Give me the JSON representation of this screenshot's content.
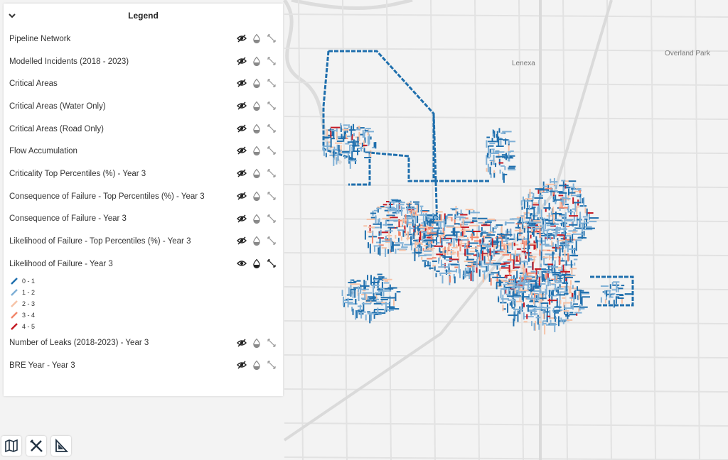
{
  "legend": {
    "title": "Legend",
    "layers": [
      {
        "name": "Pipeline Network"
      },
      {
        "name": "Modelled Incidents (2018 - 2023)"
      },
      {
        "name": "Critical Areas"
      },
      {
        "name": "Critical Areas (Water Only)"
      },
      {
        "name": "Critical Areas (Road Only)"
      },
      {
        "name": "Flow Accumulation"
      },
      {
        "name": "Criticality Top Percentiles (%) - Year 3"
      },
      {
        "name": "Consequence of Failure - Top Percentiles (%) - Year 3"
      },
      {
        "name": "Consequence of Failure - Year 3"
      },
      {
        "name": "Likelihood of Failure - Top Percentiles (%) - Year 3"
      },
      {
        "name": "Likelihood of Failure - Year 3",
        "visible": true,
        "items": [
          {
            "label": "0 - 1",
            "color": "#1f6fad"
          },
          {
            "label": "1 - 2",
            "color": "#7fb0d6"
          },
          {
            "label": "2 - 3",
            "color": "#f6c2a6"
          },
          {
            "label": "3 - 4",
            "color": "#f2876c"
          },
          {
            "label": "4 - 5",
            "color": "#c41a24"
          }
        ]
      },
      {
        "name": "Number of Leaks (2018-2023) - Year 3"
      },
      {
        "name": "BRE Year - Year 3"
      }
    ]
  },
  "map": {
    "places": [
      "Lenexa",
      "Overland Park"
    ]
  }
}
